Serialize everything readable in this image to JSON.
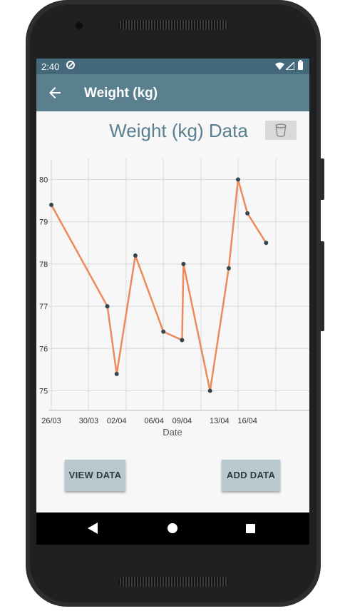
{
  "status_bar": {
    "time": "2:40"
  },
  "app_bar": {
    "title": "Weight (kg)"
  },
  "page": {
    "title": "Weight (kg) Data"
  },
  "buttons": {
    "view_data": "VIEW DATA",
    "add_data": "ADD DATA"
  },
  "icons": {
    "back": "arrow-back-icon",
    "delete": "trash-icon",
    "dnd": "do-not-disturb-icon",
    "wifi": "wifi-icon",
    "signal": "signal-icon",
    "battery": "battery-icon",
    "nav_back": "nav-back-icon",
    "nav_home": "nav-home-icon",
    "nav_recents": "nav-recents-icon"
  },
  "colors": {
    "status_bar": "#44697b",
    "app_bar": "#5a7f8f",
    "title_text": "#5a7f8f",
    "line": "#ed8a5c",
    "points": "#37474f",
    "button_bg": "#b9c8ce"
  },
  "chart_data": {
    "type": "line",
    "xlabel": "Date",
    "ylabel": "",
    "x_ticks": [
      "26/03",
      "30/03",
      "02/04",
      "06/04",
      "09/04",
      "13/04",
      "16/04"
    ],
    "y_ticks": [
      75,
      76,
      77,
      78,
      79,
      80
    ],
    "ylim": [
      74.5,
      80.5
    ],
    "grid": true,
    "series": [
      {
        "x": [
          "26/03",
          "01/04",
          "02/04",
          "04/04",
          "07/04",
          "09/04",
          "09/04",
          "12/04",
          "14/04",
          "15/04",
          "16/04",
          "18/04"
        ],
        "y": [
          79.4,
          77.0,
          75.4,
          78.2,
          76.4,
          76.2,
          78.0,
          75.0,
          77.9,
          80.0,
          79.2,
          78.5
        ]
      }
    ]
  }
}
